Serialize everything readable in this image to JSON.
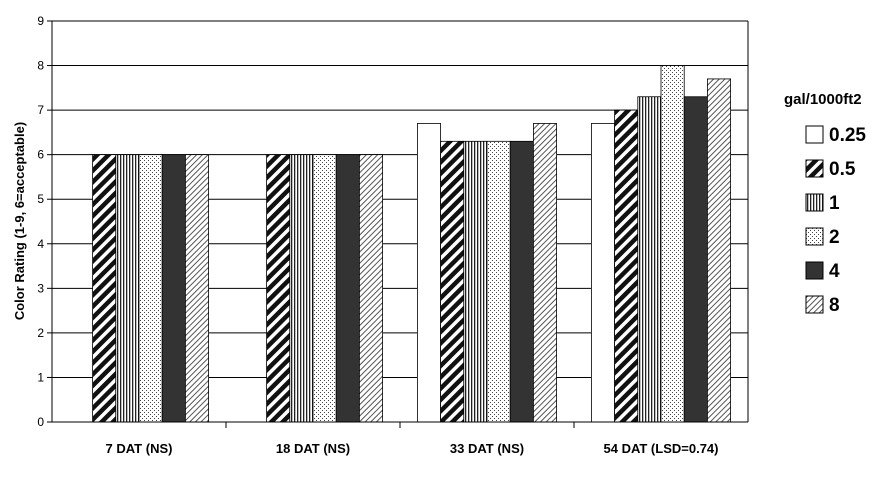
{
  "chart_data": {
    "type": "bar",
    "title": "",
    "xlabel": "",
    "ylabel": "Color Rating (1-9, 6=acceptable)",
    "ylim": [
      0,
      9
    ],
    "yticks": [
      0,
      1,
      2,
      3,
      4,
      5,
      6,
      7,
      8,
      9
    ],
    "grid": true,
    "legend_position": "right",
    "legend_title": "gal/1000ft2",
    "categories": [
      "7 DAT (NS)",
      "18 DAT (NS)",
      "33 DAT (NS)",
      "54 DAT (LSD=0.74)"
    ],
    "series": [
      {
        "name": "0.25",
        "values": [
          null,
          null,
          6.7,
          6.7
        ],
        "pattern": "white"
      },
      {
        "name": "0.5",
        "values": [
          6.0,
          6.0,
          6.3,
          7.0
        ],
        "pattern": "wide-diagonal"
      },
      {
        "name": "1",
        "values": [
          6.0,
          6.0,
          6.3,
          7.3
        ],
        "pattern": "vertical-lines"
      },
      {
        "name": "2",
        "values": [
          6.0,
          6.0,
          6.3,
          8.0
        ],
        "pattern": "dots"
      },
      {
        "name": "4",
        "values": [
          6.0,
          6.0,
          6.3,
          7.3
        ],
        "pattern": "solid-dark"
      },
      {
        "name": "8",
        "values": [
          6.0,
          6.0,
          6.7,
          7.7
        ],
        "pattern": "light-diagonal"
      }
    ]
  }
}
